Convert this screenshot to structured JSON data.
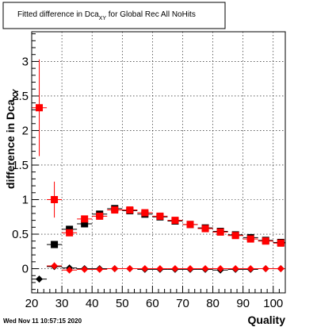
{
  "chart_data": {
    "type": "scatter",
    "title": "Fitted difference in Dca",
    "title_sub": "XY",
    "title_rest": " for Global Rec All NoHits",
    "ylabel": "difference in Dca",
    "ylabel_sub": "XY",
    "xlabel": "Quality",
    "xlim": [
      20,
      104
    ],
    "ylim": [
      -0.35,
      3.43
    ],
    "x_ticks": [
      20,
      30,
      40,
      50,
      60,
      70,
      80,
      90,
      100
    ],
    "y_ticks": [
      0,
      0.5,
      1,
      1.5,
      2,
      2.5,
      3
    ],
    "x_tick_labels": [
      "20",
      "30",
      "40",
      "50",
      "60",
      "70",
      "80",
      "90",
      "100"
    ],
    "y_tick_labels": [
      "0",
      "0.5",
      "1",
      "1.5",
      "2",
      "2.5",
      "3"
    ],
    "grid": true,
    "series": [
      {
        "marker": "square",
        "color": "#000000",
        "x": [
          27.5,
          32.5,
          37.5,
          42.5,
          47.5,
          52.5,
          57.5,
          62.5,
          67.5,
          72.5,
          77.5,
          82.5,
          87.5,
          92.5,
          97.5,
          102.5
        ],
        "y": [
          0.35,
          0.57,
          0.65,
          0.79,
          0.87,
          0.84,
          0.79,
          0.75,
          0.69,
          0.64,
          0.59,
          0.54,
          0.49,
          0.45,
          0.41,
          0.38
        ],
        "err": [
          0.02,
          0.02,
          0.02,
          0.02,
          0.02,
          0.02,
          0.02,
          0.02,
          0.02,
          0.02,
          0.02,
          0.02,
          0.02,
          0.02,
          0.02,
          0.02
        ]
      },
      {
        "marker": "square",
        "color": "#ff0000",
        "x": [
          22.5,
          27.5,
          32.5,
          37.5,
          42.5,
          47.5,
          52.5,
          57.5,
          62.5,
          67.5,
          72.5,
          77.5,
          82.5,
          87.5,
          92.5,
          97.5,
          102.5
        ],
        "y": [
          2.33,
          1.0,
          0.52,
          0.72,
          0.76,
          0.85,
          0.85,
          0.81,
          0.76,
          0.7,
          0.64,
          0.58,
          0.53,
          0.48,
          0.43,
          0.4,
          0.37
        ],
        "err": [
          0.7,
          0.26,
          0.04,
          0.03,
          0.02,
          0.02,
          0.02,
          0.02,
          0.02,
          0.02,
          0.02,
          0.02,
          0.02,
          0.02,
          0.02,
          0.02,
          0.02
        ]
      },
      {
        "marker": "diamond",
        "color": "#000000",
        "x": [
          22.5,
          27.5,
          32.5,
          37.5,
          42.5,
          47.5,
          52.5,
          57.5,
          62.5,
          67.5,
          72.5,
          77.5,
          82.5,
          87.5,
          92.5,
          97.5,
          102.5
        ],
        "y": [
          -0.15,
          0.03,
          0.01,
          0.0,
          0.0,
          0.0,
          0.0,
          -0.01,
          -0.01,
          -0.01,
          -0.01,
          -0.01,
          -0.02,
          -0.01,
          -0.01,
          0.0,
          0.0
        ],
        "err": [
          0.02,
          0.02,
          0.01,
          0.01,
          0.01,
          0.01,
          0.01,
          0.01,
          0.01,
          0.01,
          0.01,
          0.01,
          0.01,
          0.01,
          0.01,
          0.01,
          0.01
        ]
      },
      {
        "marker": "diamond",
        "color": "#ff0000",
        "x": [
          27.5,
          32.5,
          37.5,
          42.5,
          47.5,
          52.5,
          57.5,
          62.5,
          67.5,
          72.5,
          77.5,
          82.5,
          87.5,
          92.5,
          97.5,
          102.5
        ],
        "y": [
          0.04,
          -0.02,
          -0.01,
          -0.01,
          0.0,
          0.0,
          0.0,
          0.0,
          0.0,
          0.0,
          0.0,
          0.0,
          0.0,
          0.0,
          0.0,
          0.0
        ],
        "err": [
          0.05,
          0.02,
          0.01,
          0.01,
          0.01,
          0.01,
          0.01,
          0.01,
          0.01,
          0.01,
          0.01,
          0.01,
          0.01,
          0.01,
          0.01,
          0.01
        ]
      }
    ]
  },
  "footer_text": "Wed Nov 11 10:57:15 2020"
}
